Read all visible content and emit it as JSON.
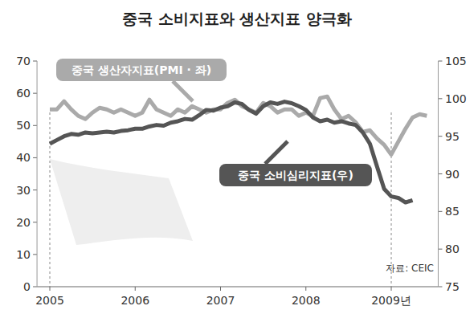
{
  "chart_data": {
    "type": "line",
    "title": "중국 소비지표와 생산지표 양극화",
    "source": "자료: CEIC",
    "x": [
      2005.0,
      2005.083,
      2005.167,
      2005.25,
      2005.333,
      2005.417,
      2005.5,
      2005.583,
      2005.667,
      2005.75,
      2005.833,
      2005.917,
      2006.0,
      2006.083,
      2006.167,
      2006.25,
      2006.333,
      2006.417,
      2006.5,
      2006.583,
      2006.667,
      2006.75,
      2006.833,
      2006.917,
      2007.0,
      2007.083,
      2007.167,
      2007.25,
      2007.333,
      2007.417,
      2007.5,
      2007.583,
      2007.667,
      2007.75,
      2007.833,
      2007.917,
      2008.0,
      2008.083,
      2008.167,
      2008.25,
      2008.333,
      2008.417,
      2008.5,
      2008.583,
      2008.667,
      2008.75,
      2008.833,
      2008.917,
      2009.0,
      2009.083,
      2009.167,
      2009.25,
      2009.333,
      2009.417
    ],
    "xlim": [
      2004.85,
      2009.55
    ],
    "xticks": [
      2005,
      2006,
      2007,
      2008,
      {
        "value": 2009,
        "label": "2009년"
      }
    ],
    "ylim": [
      0,
      70
    ],
    "yticks": [
      0,
      10,
      20,
      30,
      40,
      50,
      60,
      70
    ],
    "y2lim": [
      75,
      105
    ],
    "y2ticks": [
      75,
      80,
      85,
      90,
      95,
      100,
      105
    ],
    "grid": false,
    "series": [
      {
        "name": "중국 생산자지표(PMI · 좌)",
        "color": "#aaaaaa",
        "axis": "y",
        "values": [
          55,
          55,
          57.5,
          55,
          53,
          52,
          54,
          55.5,
          55,
          54,
          55,
          54,
          53,
          54,
          58,
          55,
          54,
          53,
          55,
          54,
          56,
          55,
          54,
          55,
          55,
          57,
          58,
          56,
          55,
          54,
          57,
          56,
          54,
          55,
          55,
          53,
          54,
          53,
          58.5,
          59,
          55,
          52,
          53,
          51,
          48,
          48.5,
          46,
          44,
          41,
          45,
          49,
          52.5,
          53.5,
          53
        ]
      },
      {
        "name": "중국 소비심리지표(우)",
        "color": "#555555",
        "axis": "y2",
        "values": [
          94,
          94.5,
          95,
          95.3,
          95.2,
          95.5,
          95.4,
          95.5,
          95.6,
          95.5,
          95.7,
          95.8,
          96,
          96,
          96.3,
          96.5,
          96.4,
          96.8,
          97,
          97.3,
          97.2,
          97.8,
          98.5,
          98.4,
          98.8,
          99,
          99.5,
          99.3,
          98.5,
          98,
          99,
          99.5,
          99.3,
          99.6,
          99.4,
          99,
          98.5,
          97.5,
          97,
          97.2,
          96.8,
          97,
          96.7,
          96.5,
          95.5,
          94,
          91,
          88,
          87,
          86.8,
          86.2,
          86.5,
          null,
          null
        ]
      }
    ]
  }
}
